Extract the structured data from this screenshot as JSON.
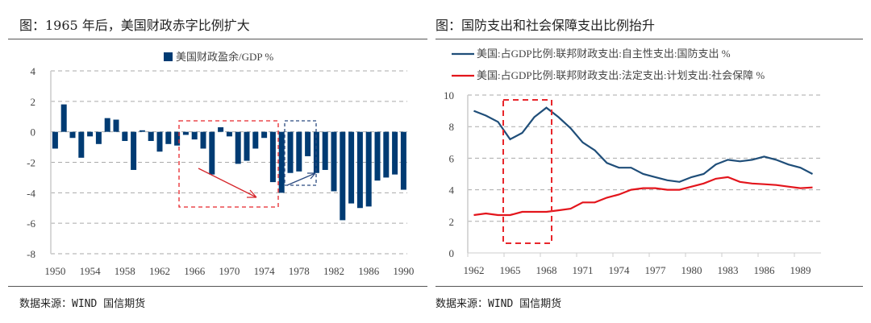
{
  "left_panel": {
    "title": "图：1965 年后，美国财政赤字比例扩大",
    "source": "数据来源：WIND 国信期货"
  },
  "right_panel": {
    "title": "图：国防支出和社会保障支出比例抬升",
    "source": "数据来源：WIND 国信期货"
  },
  "chart_data": [
    {
      "type": "bar",
      "legend": "美国财政盈余/GDP %",
      "legend_position": "top",
      "color": "#003b73",
      "categories": [
        1950,
        1951,
        1952,
        1953,
        1954,
        1955,
        1956,
        1957,
        1958,
        1959,
        1960,
        1961,
        1962,
        1963,
        1964,
        1965,
        1966,
        1967,
        1968,
        1969,
        1970,
        1971,
        1972,
        1973,
        1974,
        1975,
        1976,
        1977,
        1978,
        1979,
        1980,
        1981,
        1982,
        1983,
        1984,
        1985,
        1986,
        1987,
        1988,
        1989,
        1990
      ],
      "values": [
        -1.1,
        1.8,
        -0.4,
        -1.7,
        -0.3,
        -0.8,
        0.9,
        0.8,
        -0.6,
        -2.5,
        0.1,
        -0.6,
        -1.3,
        -0.8,
        -0.9,
        -0.2,
        -0.5,
        -1.1,
        -2.8,
        0.3,
        -0.3,
        -2.1,
        -1.9,
        -1.1,
        -0.4,
        -3.3,
        -4.0,
        -2.7,
        -2.6,
        -1.6,
        -2.7,
        -2.5,
        -3.9,
        -5.8,
        -4.7,
        -5.0,
        -4.9,
        -3.2,
        -3.0,
        -2.8,
        -3.8
      ],
      "x_tick_labels": [
        "1950",
        "1954",
        "1958",
        "1962",
        "1966",
        "1970",
        "1974",
        "1978",
        "1982",
        "1986",
        "1990"
      ],
      "y_tick_labels": [
        "4",
        "2",
        "0",
        "-2",
        "-4",
        "-6",
        "-8"
      ],
      "ylim": [
        -8,
        4
      ],
      "grid": true
    },
    {
      "type": "line",
      "legend_position": "top",
      "categories": [
        1962,
        1963,
        1964,
        1965,
        1966,
        1967,
        1968,
        1969,
        1970,
        1971,
        1972,
        1973,
        1974,
        1975,
        1976,
        1977,
        1978,
        1979,
        1980,
        1981,
        1982,
        1983,
        1984,
        1985,
        1986,
        1987,
        1988,
        1989,
        1990
      ],
      "series": [
        {
          "name": "美国:占GDP比例:联邦财政支出:自主性支出:国防支出 %",
          "color": "#1f4e79",
          "values": [
            9.0,
            8.7,
            8.3,
            7.2,
            7.6,
            8.6,
            9.2,
            8.6,
            7.9,
            7.0,
            6.5,
            5.7,
            5.4,
            5.4,
            5.0,
            4.8,
            4.6,
            4.5,
            4.8,
            5.0,
            5.6,
            5.9,
            5.8,
            5.9,
            6.1,
            5.9,
            5.6,
            5.4,
            5.0
          ]
        },
        {
          "name": "美国:占GDP比例:联邦财政支出:法定支出:计划支出:社会保障 %",
          "color": "#e3151c",
          "values": [
            2.4,
            2.5,
            2.4,
            2.4,
            2.6,
            2.6,
            2.6,
            2.7,
            2.8,
            3.2,
            3.2,
            3.5,
            3.7,
            4.0,
            4.1,
            4.1,
            4.0,
            4.0,
            4.2,
            4.4,
            4.7,
            4.8,
            4.5,
            4.4,
            4.35,
            4.3,
            4.2,
            4.1,
            4.15
          ]
        }
      ],
      "x_tick_labels": [
        "1962",
        "1965",
        "1968",
        "1971",
        "1974",
        "1977",
        "1980",
        "1983",
        "1986",
        "1989"
      ],
      "y_tick_labels": [
        "10",
        "8",
        "6",
        "4",
        "2",
        "0"
      ],
      "ylim": [
        0,
        10
      ],
      "grid": true
    }
  ]
}
